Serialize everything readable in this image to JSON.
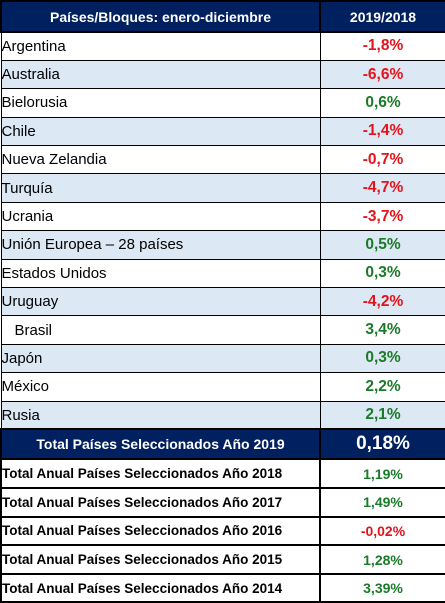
{
  "header": {
    "country_col": "Países/Bloques: enero-diciembre",
    "value_col": "2019/2018"
  },
  "rows": [
    {
      "name": "Argentina",
      "value": "-1,8%"
    },
    {
      "name": "Australia",
      "value": "-6,6%"
    },
    {
      "name": "Bielorusia",
      "value": "0,6%"
    },
    {
      "name": "Chile",
      "value": "-1,4%"
    },
    {
      "name": "Nueva Zelandia",
      "value": "-0,7%"
    },
    {
      "name": "Turquía",
      "value": "-4,7%"
    },
    {
      "name": "Ucrania",
      "value": "-3,7%"
    },
    {
      "name": "Unión Europea – 28 países",
      "value": "0,5%"
    },
    {
      "name": "Estados Unidos",
      "value": "0,3%"
    },
    {
      "name": "Uruguay",
      "value": "-4,2%"
    },
    {
      "name": "Brasil",
      "value": "3,4%"
    },
    {
      "name": "Japón",
      "value": "0,3%"
    },
    {
      "name": "México",
      "value": "2,2%"
    },
    {
      "name": "Rusia",
      "value": "2,1%"
    }
  ],
  "total_2019": {
    "label": "Total Países Seleccionados Año 2019",
    "value": "0,18%"
  },
  "annual_totals": [
    {
      "label": "Total Anual Países Seleccionados Año 2018",
      "value": "1,19%"
    },
    {
      "label": "Total Anual Países Seleccionados Año 2017",
      "value": "1,49%"
    },
    {
      "label": "Total Anual Países Seleccionados Año 2016",
      "value": "-0,02%"
    },
    {
      "label": "Total Anual Países Seleccionados Año 2015",
      "value": "1,28%"
    },
    {
      "label": "Total Anual Países Seleccionados Año 2014",
      "value": "3,39%"
    }
  ],
  "colors": {
    "header_bg": "#002060",
    "row_alt_bg": "#dde8f5",
    "positive": "#1a7a28",
    "negative": "#e3121b"
  }
}
